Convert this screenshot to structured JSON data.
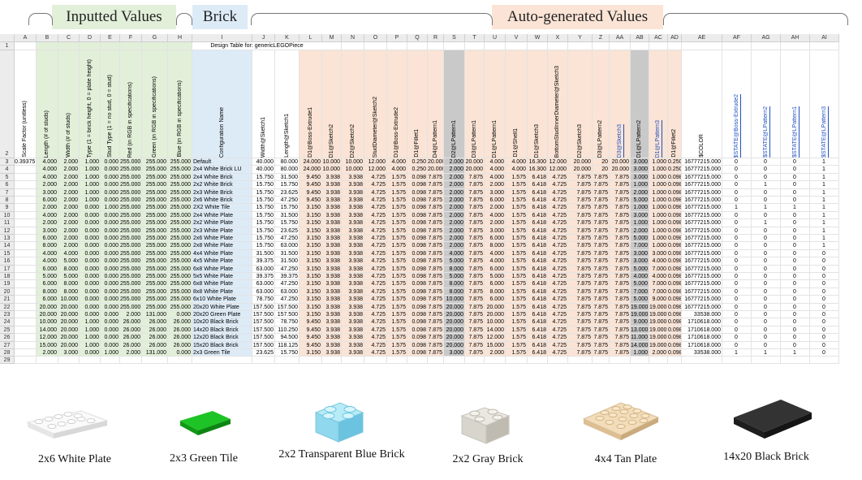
{
  "headers": {
    "inputted": "Inputted Values",
    "brick": "Brick",
    "auto": "Auto-generated Values"
  },
  "sheet": {
    "title": "Design Table for: genericLEGOPiece",
    "columns": [
      "A",
      "B",
      "C",
      "D",
      "E",
      "F",
      "G",
      "H",
      "I",
      "J",
      "K",
      "L",
      "M",
      "N",
      "O",
      "P",
      "Q",
      "R",
      "S",
      "T",
      "U",
      "V",
      "W",
      "X",
      "Y",
      "Z",
      "AA",
      "AB",
      "AC",
      "AD",
      "AE",
      "AF",
      "AG",
      "AH",
      "AI"
    ],
    "param_names": [
      "Scale Factor (unitless)",
      "Length (# of studs)",
      "Width (# of studs)",
      "Type (1 = brick height, 0 = plate height)",
      "Stud Type (1 = no stud, 0 = stud)",
      "Red (in RGB in specifications)",
      "Green (in RGB in specifications)",
      "Blue (in RGB in specifications)",
      "Configuration Name",
      "Width@Sketch1",
      "Length@Sketch1",
      "D1@Boss-Extrude1",
      "D1@Sketch2",
      "D2@Sketch2",
      "StudDiameter@Sketch2",
      "D1@Boss-Extrude2",
      "D1@Fillet1",
      "D4@LPattern1",
      "D2@LPattern1",
      "D3@LPattern1",
      "D1@LPattern1",
      "D1@Shell1",
      "D1@Sketch3",
      "BottomStudInnerDiameter@Sketch3",
      "D2@Sketch3",
      "D3@LPattern2",
      "D3@Sketch3",
      "D1@LPattern2",
      "D1@LPattern3",
      "D1@Fillet2",
      "$COLOR",
      "$STATE@Boss-Extrude2",
      "$STATE@LPattern2",
      "$STATE@LPattern1",
      "$STATE@LPattern3"
    ],
    "rows": [
      [
        "0.39375",
        "4.000",
        "2.000",
        "1.000",
        "0.000",
        "255.000",
        "255.000",
        "255.000",
        "Default",
        "40.000",
        "80.000",
        "24.000",
        "10.000",
        "10.000",
        "12.000",
        "4.000",
        "0.250",
        "20.000",
        "2.000",
        "20.000",
        "4.000",
        "4.000",
        "16.300",
        "12.000",
        "20.000",
        "20",
        "20.000",
        "3.000",
        "1.000",
        "0.250",
        "16777215.000",
        "0",
        "0",
        "0",
        "1"
      ],
      [
        "",
        "4.000",
        "2.000",
        "1.000",
        "0.000",
        "255.000",
        "255.000",
        "255.000",
        "2x4 White Brick LU",
        "40.000",
        "80.000",
        "24.000",
        "10.000",
        "10.000",
        "12.000",
        "4.000",
        "0.250",
        "20.000",
        "2.000",
        "20.000",
        "4.000",
        "4.000",
        "16.300",
        "12.000",
        "20.000",
        "20",
        "20.000",
        "3.000",
        "1.000",
        "0.250",
        "16777215.000",
        "0",
        "0",
        "0",
        "1"
      ],
      [
        "",
        "4.000",
        "2.000",
        "1.000",
        "0.000",
        "255.000",
        "255.000",
        "255.000",
        "2x4 White Brick",
        "15.750",
        "31.500",
        "9.450",
        "3.938",
        "3.938",
        "4.725",
        "1.575",
        "0.098",
        "7.875",
        "2.000",
        "7.875",
        "4.000",
        "1.575",
        "6.418",
        "4.725",
        "7.875",
        "7.875",
        "7.875",
        "3.000",
        "1.000",
        "0.098",
        "16777215.000",
        "0",
        "0",
        "0",
        "1"
      ],
      [
        "",
        "2.000",
        "2.000",
        "1.000",
        "0.000",
        "255.000",
        "255.000",
        "255.000",
        "2x2 White Brick",
        "15.750",
        "15.750",
        "9.450",
        "3.938",
        "3.938",
        "4.725",
        "1.575",
        "0.098",
        "7.875",
        "2.000",
        "7.875",
        "2.000",
        "1.575",
        "6.418",
        "4.725",
        "7.875",
        "7.875",
        "7.875",
        "1.000",
        "1.000",
        "0.098",
        "16777215.000",
        "0",
        "1",
        "0",
        "1"
      ],
      [
        "",
        "3.000",
        "2.000",
        "1.000",
        "0.000",
        "255.000",
        "255.000",
        "255.000",
        "2x3 White Brick",
        "15.750",
        "23.625",
        "9.450",
        "3.938",
        "3.938",
        "4.725",
        "1.575",
        "0.098",
        "7.875",
        "2.000",
        "7.875",
        "3.000",
        "1.575",
        "6.418",
        "4.725",
        "7.875",
        "7.875",
        "7.875",
        "2.000",
        "1.000",
        "0.098",
        "16777215.000",
        "0",
        "0",
        "0",
        "1"
      ],
      [
        "",
        "6.000",
        "2.000",
        "1.000",
        "0.000",
        "255.000",
        "255.000",
        "255.000",
        "2x6 White Brick",
        "15.750",
        "47.250",
        "9.450",
        "3.938",
        "3.938",
        "4.725",
        "1.575",
        "0.098",
        "7.875",
        "2.000",
        "7.875",
        "6.000",
        "1.575",
        "6.418",
        "4.725",
        "7.875",
        "7.875",
        "7.875",
        "5.000",
        "1.000",
        "0.098",
        "16777215.000",
        "0",
        "0",
        "0",
        "1"
      ],
      [
        "",
        "2.000",
        "2.000",
        "0.000",
        "1.000",
        "255.000",
        "255.000",
        "255.000",
        "2X2 White Tile",
        "15.750",
        "15.750",
        "3.150",
        "3.938",
        "3.938",
        "4.725",
        "1.575",
        "0.098",
        "7.875",
        "2.000",
        "7.875",
        "2.000",
        "1.575",
        "6.418",
        "4.725",
        "7.875",
        "7.875",
        "7.875",
        "1.000",
        "1.000",
        "0.098",
        "16777215.000",
        "1",
        "1",
        "1",
        "1"
      ],
      [
        "",
        "4.000",
        "2.000",
        "0.000",
        "0.000",
        "255.000",
        "255.000",
        "255.000",
        "2x4 White Plate",
        "15.750",
        "31.500",
        "3.150",
        "3.938",
        "3.938",
        "4.725",
        "1.575",
        "0.098",
        "7.875",
        "2.000",
        "7.875",
        "4.000",
        "1.575",
        "6.418",
        "4.725",
        "7.875",
        "7.875",
        "7.875",
        "3.000",
        "1.000",
        "0.098",
        "16777215.000",
        "0",
        "0",
        "0",
        "1"
      ],
      [
        "",
        "2.000",
        "2.000",
        "0.000",
        "0.000",
        "255.000",
        "255.000",
        "255.000",
        "2x2 White Plate",
        "15.750",
        "15.750",
        "3.150",
        "3.938",
        "3.938",
        "4.725",
        "1.575",
        "0.098",
        "7.875",
        "2.000",
        "7.875",
        "2.000",
        "1.575",
        "6.418",
        "4.725",
        "7.875",
        "7.875",
        "7.875",
        "1.000",
        "1.000",
        "0.098",
        "16777215.000",
        "0",
        "1",
        "0",
        "1"
      ],
      [
        "",
        "3.000",
        "2.000",
        "0.000",
        "0.000",
        "255.000",
        "255.000",
        "255.000",
        "2x3 White Plate",
        "15.750",
        "23.625",
        "3.150",
        "3.938",
        "3.938",
        "4.725",
        "1.575",
        "0.098",
        "7.875",
        "2.000",
        "7.875",
        "3.000",
        "1.575",
        "6.418",
        "4.725",
        "7.875",
        "7.875",
        "7.875",
        "2.000",
        "1.000",
        "0.098",
        "16777215.000",
        "0",
        "0",
        "0",
        "1"
      ],
      [
        "",
        "6.000",
        "2.000",
        "0.000",
        "0.000",
        "255.000",
        "255.000",
        "255.000",
        "2x6 White Plate",
        "15.750",
        "47.250",
        "3.150",
        "3.938",
        "3.938",
        "4.725",
        "1.575",
        "0.098",
        "7.875",
        "2.000",
        "7.875",
        "6.000",
        "1.575",
        "6.418",
        "4.725",
        "7.875",
        "7.875",
        "7.875",
        "5.000",
        "1.000",
        "0.098",
        "16777215.000",
        "0",
        "0",
        "0",
        "1"
      ],
      [
        "",
        "8.000",
        "2.000",
        "0.000",
        "0.000",
        "255.000",
        "255.000",
        "255.000",
        "2x8 White Plate",
        "15.750",
        "63.000",
        "3.150",
        "3.938",
        "3.938",
        "4.725",
        "1.575",
        "0.098",
        "7.875",
        "2.000",
        "7.875",
        "8.000",
        "1.575",
        "6.418",
        "4.725",
        "7.875",
        "7.875",
        "7.875",
        "7.000",
        "1.000",
        "0.098",
        "16777215.000",
        "0",
        "0",
        "0",
        "1"
      ],
      [
        "",
        "4.000",
        "4.000",
        "0.000",
        "0.000",
        "255.000",
        "255.000",
        "255.000",
        "4x4 White Plate",
        "31.500",
        "31.500",
        "3.150",
        "3.938",
        "3.938",
        "4.725",
        "1.575",
        "0.098",
        "7.875",
        "4.000",
        "7.875",
        "4.000",
        "1.575",
        "6.418",
        "4.725",
        "7.875",
        "7.875",
        "7.875",
        "3.000",
        "3.000",
        "0.098",
        "16777215.000",
        "0",
        "0",
        "0",
        "0"
      ],
      [
        "",
        "4.000",
        "5.000",
        "0.000",
        "0.000",
        "255.000",
        "255.000",
        "255.000",
        "4x5 White Plate",
        "39.375",
        "31.500",
        "3.150",
        "3.938",
        "3.938",
        "4.725",
        "1.575",
        "0.098",
        "7.875",
        "5.000",
        "7.875",
        "4.000",
        "1.575",
        "6.418",
        "4.725",
        "7.875",
        "7.875",
        "7.875",
        "3.000",
        "4.000",
        "0.098",
        "16777215.000",
        "0",
        "0",
        "0",
        "0"
      ],
      [
        "",
        "6.000",
        "8.000",
        "0.000",
        "0.000",
        "255.000",
        "255.000",
        "255.000",
        "6x8 White Plate",
        "63.000",
        "47.250",
        "3.150",
        "3.938",
        "3.938",
        "4.725",
        "1.575",
        "0.098",
        "7.875",
        "8.000",
        "7.875",
        "6.000",
        "1.575",
        "6.418",
        "4.725",
        "7.875",
        "7.875",
        "7.875",
        "5.000",
        "7.000",
        "0.098",
        "16777215.000",
        "0",
        "0",
        "0",
        "0"
      ],
      [
        "",
        "5.000",
        "5.000",
        "0.000",
        "0.000",
        "255.000",
        "255.000",
        "255.000",
        "5x5 White Plate",
        "39.375",
        "39.375",
        "3.150",
        "3.938",
        "3.938",
        "4.725",
        "1.575",
        "0.098",
        "7.875",
        "5.000",
        "7.875",
        "5.000",
        "1.575",
        "6.418",
        "4.725",
        "7.875",
        "7.875",
        "7.875",
        "4.000",
        "4.000",
        "0.098",
        "16777215.000",
        "0",
        "0",
        "0",
        "0"
      ],
      [
        "",
        "6.000",
        "8.000",
        "0.000",
        "0.000",
        "255.000",
        "255.000",
        "255.000",
        "6x8 White Plate",
        "63.000",
        "47.250",
        "3.150",
        "3.938",
        "3.938",
        "4.725",
        "1.575",
        "0.098",
        "7.875",
        "8.000",
        "7.875",
        "6.000",
        "1.575",
        "6.418",
        "4.725",
        "7.875",
        "7.875",
        "7.875",
        "5.000",
        "7.000",
        "0.098",
        "16777215.000",
        "0",
        "0",
        "0",
        "0"
      ],
      [
        "",
        "8.000",
        "8.000",
        "0.000",
        "0.000",
        "255.000",
        "255.000",
        "255.000",
        "8x8 White Plate",
        "63.000",
        "63.000",
        "3.150",
        "3.938",
        "3.938",
        "4.725",
        "1.575",
        "0.098",
        "7.875",
        "8.000",
        "7.875",
        "8.000",
        "1.575",
        "6.418",
        "4.725",
        "7.875",
        "7.875",
        "7.875",
        "7.000",
        "7.000",
        "0.098",
        "16777215.000",
        "0",
        "0",
        "0",
        "0"
      ],
      [
        "",
        "6.000",
        "10.000",
        "0.000",
        "0.000",
        "255.000",
        "255.000",
        "255.000",
        "6x10 White Plate",
        "78.750",
        "47.250",
        "3.150",
        "3.938",
        "3.938",
        "4.725",
        "1.575",
        "0.098",
        "7.875",
        "10.000",
        "7.875",
        "6.000",
        "1.575",
        "6.418",
        "4.725",
        "7.875",
        "7.875",
        "7.875",
        "5.000",
        "9.000",
        "0.098",
        "16777215.000",
        "0",
        "0",
        "0",
        "0"
      ],
      [
        "",
        "20.000",
        "20.000",
        "0.000",
        "0.000",
        "255.000",
        "255.000",
        "255.000",
        "20x20 White Plate",
        "157.500",
        "157.500",
        "3.150",
        "3.938",
        "3.938",
        "4.725",
        "1.575",
        "0.098",
        "7.875",
        "20.000",
        "7.875",
        "20.000",
        "1.575",
        "6.418",
        "4.725",
        "7.875",
        "7.875",
        "7.875",
        "19.000",
        "19.000",
        "0.098",
        "16777215.000",
        "0",
        "0",
        "0",
        "0"
      ],
      [
        "",
        "20.000",
        "20.000",
        "0.000",
        "0.000",
        "2.000",
        "131.000",
        "0.000",
        "20x20 Green Plate",
        "157.500",
        "157.500",
        "3.150",
        "3.938",
        "3.938",
        "4.725",
        "1.575",
        "0.098",
        "7.875",
        "20.000",
        "7.875",
        "20.000",
        "1.575",
        "6.418",
        "4.725",
        "7.875",
        "7.875",
        "7.875",
        "19.000",
        "19.000",
        "0.098",
        "33538.000",
        "0",
        "0",
        "0",
        "0"
      ],
      [
        "",
        "10.000",
        "20.000",
        "1.000",
        "0.000",
        "26.000",
        "26.000",
        "26.000",
        "10x20 Black Brick",
        "157.500",
        "78.750",
        "9.450",
        "3.938",
        "3.938",
        "4.725",
        "1.575",
        "0.098",
        "7.875",
        "20.000",
        "7.875",
        "10.000",
        "1.575",
        "6.418",
        "4.725",
        "7.875",
        "7.875",
        "7.875",
        "9.000",
        "19.000",
        "0.098",
        "1710618.000",
        "0",
        "0",
        "0",
        "0"
      ],
      [
        "",
        "14.000",
        "20.000",
        "1.000",
        "0.000",
        "26.000",
        "26.000",
        "26.000",
        "14x20 Black Brick",
        "157.500",
        "110.250",
        "9.450",
        "3.938",
        "3.938",
        "4.725",
        "1.575",
        "0.098",
        "7.875",
        "20.000",
        "7.875",
        "14.000",
        "1.575",
        "6.418",
        "4.725",
        "7.875",
        "7.875",
        "7.875",
        "13.000",
        "19.000",
        "0.098",
        "1710618.000",
        "0",
        "0",
        "0",
        "0"
      ],
      [
        "",
        "12.000",
        "20.000",
        "1.000",
        "0.000",
        "26.000",
        "26.000",
        "26.000",
        "12x20 Black Brick",
        "157.500",
        "94.500",
        "9.450",
        "3.938",
        "3.938",
        "4.725",
        "1.575",
        "0.098",
        "7.875",
        "20.000",
        "7.875",
        "12.000",
        "1.575",
        "6.418",
        "4.725",
        "7.875",
        "7.875",
        "7.875",
        "11.000",
        "19.000",
        "0.098",
        "1710618.000",
        "0",
        "0",
        "0",
        "0"
      ],
      [
        "",
        "15.000",
        "20.000",
        "1.000",
        "0.000",
        "26.000",
        "26.000",
        "26.000",
        "15x20 Black Brick",
        "157.500",
        "118.125",
        "9.450",
        "3.938",
        "3.938",
        "4.725",
        "1.575",
        "0.098",
        "7.875",
        "20.000",
        "7.875",
        "15.000",
        "1.575",
        "6.418",
        "4.725",
        "7.875",
        "7.875",
        "7.875",
        "14.000",
        "19.000",
        "0.098",
        "1710618.000",
        "0",
        "0",
        "0",
        "0"
      ],
      [
        "",
        "2.000",
        "3.000",
        "0.000",
        "1.000",
        "2.000",
        "131.000",
        "0.000",
        "2x3 Green Tile",
        "23.625",
        "15.750",
        "3.150",
        "3.938",
        "3.938",
        "4.725",
        "1.575",
        "0.098",
        "7.875",
        "3.000",
        "7.875",
        "2.000",
        "1.575",
        "6.418",
        "4.725",
        "7.875",
        "7.875",
        "7.875",
        "1.000",
        "2.000",
        "0.098",
        "33538.000",
        "1",
        "1",
        "1",
        "0"
      ]
    ]
  },
  "bricks": [
    {
      "caption": "2x6 White Plate",
      "icon": "white-plate-icon",
      "color": "#f4f4f4"
    },
    {
      "caption": "2x3 Green Tile",
      "icon": "green-tile-icon",
      "color": "#17b51f"
    },
    {
      "caption": "2x2 Transparent Blue Brick",
      "icon": "transparent-blue-brick-icon",
      "color": "#8fd8ee"
    },
    {
      "caption": "2x2 Gray Brick",
      "icon": "gray-brick-icon",
      "color": "#d8d5cc"
    },
    {
      "caption": "4x4 Tan Plate",
      "icon": "tan-plate-icon",
      "color": "#ecd3ad"
    },
    {
      "caption": "14x20 Black Brick",
      "icon": "black-brick-icon",
      "color": "#2a2a2a"
    }
  ],
  "colors": {
    "green": "#e2efd9",
    "blue": "#ddebf7",
    "orange": "#fbe4d5",
    "gray": "#c9c9c9"
  }
}
